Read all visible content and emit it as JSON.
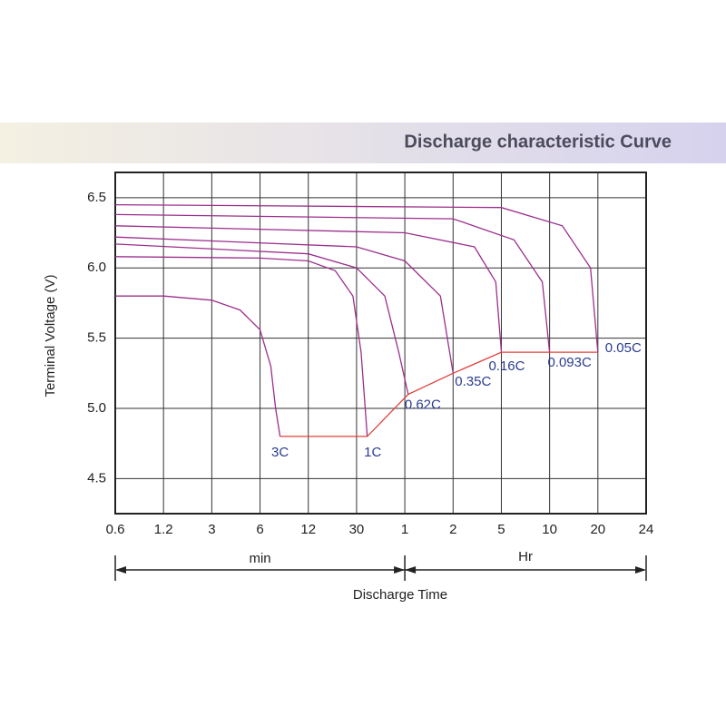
{
  "chart_data": {
    "type": "line",
    "title": "Discharge characteristic Curve",
    "xlabel": "Discharge Time",
    "ylabel": "Terminal Voltage (V)",
    "x_units": [
      "min",
      "Hr"
    ],
    "xlim": [
      0.6,
      1440
    ],
    "xticks": [
      0.6,
      1.2,
      3,
      6,
      12,
      30,
      {
        "value": 60,
        "label": "1"
      },
      {
        "value": 120,
        "label": "2"
      },
      {
        "value": 300,
        "label": "5"
      },
      {
        "value": 600,
        "label": "10"
      },
      {
        "value": 1200,
        "label": "20"
      },
      {
        "value": 1440,
        "label": "24"
      }
    ],
    "ylim": [
      4.25,
      6.68
    ],
    "yticks": [
      {
        "value": 4.5,
        "label": "4.5"
      },
      {
        "value": 5,
        "label": "5.0"
      },
      {
        "value": 5.5,
        "label": "5.5"
      },
      {
        "value": 6,
        "label": "6.0"
      },
      {
        "value": 6.5,
        "label": "6.5"
      }
    ],
    "grid": true,
    "curve_color": "#9c2f8c",
    "label_color": "#2b3c8e",
    "series": [
      {
        "name": "3C",
        "x": [
          0.6,
          1.2,
          3,
          4.5,
          6,
          7,
          7.5,
          8
        ],
        "values": [
          5.8,
          5.8,
          5.77,
          5.7,
          5.56,
          5.3,
          5.0,
          4.8
        ]
      },
      {
        "name": "1C",
        "x": [
          0.6,
          6,
          12,
          20,
          28,
          32,
          35
        ],
        "values": [
          6.08,
          6.07,
          6.05,
          5.98,
          5.8,
          5.4,
          4.8
        ]
      },
      {
        "name": "0.62C",
        "x": [
          0.6,
          12,
          30,
          45,
          55,
          63
        ],
        "values": [
          6.17,
          6.1,
          6.0,
          5.8,
          5.4,
          5.1
        ]
      },
      {
        "name": "0.35C",
        "x": [
          0.6,
          30,
          60,
          100,
          120
        ],
        "values": [
          6.22,
          6.15,
          6.05,
          5.8,
          5.25
        ]
      },
      {
        "name": "0.16C",
        "x": [
          0.6,
          60,
          180,
          270,
          300
        ],
        "values": [
          6.3,
          6.25,
          6.15,
          5.9,
          5.4
        ]
      },
      {
        "name": "0.093C",
        "x": [
          0.6,
          120,
          360,
          540,
          600
        ],
        "values": [
          6.38,
          6.35,
          6.2,
          5.9,
          5.4
        ]
      },
      {
        "name": "0.05C",
        "x": [
          0.6,
          300,
          720,
          1080,
          1200
        ],
        "values": [
          6.45,
          6.43,
          6.3,
          6.0,
          5.4
        ]
      }
    ],
    "cutoff": {
      "color": "#e0403a",
      "x": [
        8,
        35,
        63,
        120,
        300,
        600,
        1200
      ],
      "values": [
        4.8,
        4.8,
        5.1,
        5.25,
        5.4,
        5.4,
        5.4
      ]
    }
  }
}
